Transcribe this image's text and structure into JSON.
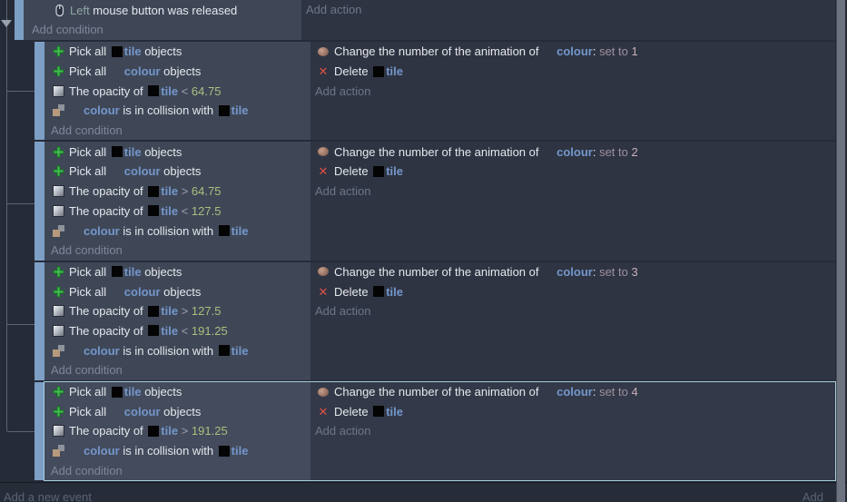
{
  "colors": {
    "page_bg": "#262b38",
    "condition_bg": "#3f4757",
    "action_bg": "#2e3442",
    "event_bar": "#7d9fc5",
    "selection_border": "#a9cfdc",
    "text": "#e6e8ec",
    "object_name": "#7497cb",
    "number": "#aabf7d",
    "operator": "#99a1ad",
    "param": "#8fa6a3",
    "set_to": "#a0909e",
    "value": "#c9b0ba",
    "add_link": "#7e8798",
    "add_link_dark": "#6e7787",
    "footer_text": "#5a6375",
    "scrollbar": "#6d747f",
    "tree_line": "#5c6473",
    "delete_red": "#dd5043",
    "plus_green": "#3fbf4f"
  },
  "labels": {
    "add_condition": "Add condition",
    "add_action": "Add action"
  },
  "objects": {
    "tile": "tile",
    "colour": "colour"
  },
  "top_event": {
    "condition": {
      "icon": "mouse-icon",
      "segments": [
        {
          "t": "Left",
          "c": "param"
        },
        {
          "t": " mouse button was released",
          "c": "text"
        }
      ]
    },
    "actions": []
  },
  "sub_events": [
    {
      "selected": false,
      "conditions": [
        {
          "icon": "pick-objects-icon",
          "segments": [
            {
              "t": "Pick all ",
              "c": "text"
            },
            {
              "thumb": "black",
              "obj": "tile"
            },
            {
              "t": "tile",
              "c": "object"
            },
            {
              "t": " objects",
              "c": "text"
            }
          ]
        },
        {
          "icon": "pick-objects-icon",
          "segments": [
            {
              "t": "Pick all ",
              "c": "text"
            },
            {
              "thumb": "clear",
              "obj": "colour"
            },
            {
              "t": "colour",
              "c": "object"
            },
            {
              "t": " objects",
              "c": "text"
            }
          ]
        },
        {
          "icon": "opacity-icon",
          "segments": [
            {
              "t": "The opacity of ",
              "c": "text"
            },
            {
              "thumb": "black",
              "obj": "tile"
            },
            {
              "t": "tile",
              "c": "object"
            },
            {
              "t": " < ",
              "c": "op"
            },
            {
              "t": "64.75",
              "c": "number"
            }
          ]
        },
        {
          "icon": "collision-icon",
          "segments": [
            {
              "thumb": "clear",
              "obj": "colour"
            },
            {
              "t": "colour",
              "c": "object"
            },
            {
              "t": " is in collision with ",
              "c": "text"
            },
            {
              "thumb": "black",
              "obj": "tile"
            },
            {
              "t": "tile",
              "c": "object"
            }
          ]
        }
      ],
      "actions": [
        {
          "icon": "animation-icon",
          "segments": [
            {
              "t": "Change the number of the animation of ",
              "c": "text"
            },
            {
              "thumb": "clear",
              "obj": "colour"
            },
            {
              "t": "colour",
              "c": "object"
            },
            {
              "t": ": ",
              "c": "text"
            },
            {
              "t": "set to ",
              "c": "setto"
            },
            {
              "t": "1",
              "c": "value"
            }
          ]
        },
        {
          "icon": "delete-icon",
          "segments": [
            {
              "t": "Delete ",
              "c": "text"
            },
            {
              "thumb": "black",
              "obj": "tile"
            },
            {
              "t": "tile",
              "c": "object"
            }
          ]
        }
      ]
    },
    {
      "selected": false,
      "conditions": [
        {
          "icon": "pick-objects-icon",
          "segments": [
            {
              "t": "Pick all ",
              "c": "text"
            },
            {
              "thumb": "black",
              "obj": "tile"
            },
            {
              "t": "tile",
              "c": "object"
            },
            {
              "t": " objects",
              "c": "text"
            }
          ]
        },
        {
          "icon": "pick-objects-icon",
          "segments": [
            {
              "t": "Pick all ",
              "c": "text"
            },
            {
              "thumb": "clear",
              "obj": "colour"
            },
            {
              "t": "colour",
              "c": "object"
            },
            {
              "t": " objects",
              "c": "text"
            }
          ]
        },
        {
          "icon": "opacity-icon",
          "segments": [
            {
              "t": "The opacity of ",
              "c": "text"
            },
            {
              "thumb": "black",
              "obj": "tile"
            },
            {
              "t": "tile",
              "c": "object"
            },
            {
              "t": " > ",
              "c": "op"
            },
            {
              "t": "64.75",
              "c": "number"
            }
          ]
        },
        {
          "icon": "opacity-icon",
          "segments": [
            {
              "t": "The opacity of ",
              "c": "text"
            },
            {
              "thumb": "black",
              "obj": "tile"
            },
            {
              "t": "tile",
              "c": "object"
            },
            {
              "t": " < ",
              "c": "op"
            },
            {
              "t": "127.5",
              "c": "number"
            }
          ]
        },
        {
          "icon": "collision-icon",
          "segments": [
            {
              "thumb": "clear",
              "obj": "colour"
            },
            {
              "t": "colour",
              "c": "object"
            },
            {
              "t": " is in collision with ",
              "c": "text"
            },
            {
              "thumb": "black",
              "obj": "tile"
            },
            {
              "t": "tile",
              "c": "object"
            }
          ]
        }
      ],
      "actions": [
        {
          "icon": "animation-icon",
          "segments": [
            {
              "t": "Change the number of the animation of ",
              "c": "text"
            },
            {
              "thumb": "clear",
              "obj": "colour"
            },
            {
              "t": "colour",
              "c": "object"
            },
            {
              "t": ": ",
              "c": "text"
            },
            {
              "t": "set to ",
              "c": "setto"
            },
            {
              "t": "2",
              "c": "value"
            }
          ]
        },
        {
          "icon": "delete-icon",
          "segments": [
            {
              "t": "Delete ",
              "c": "text"
            },
            {
              "thumb": "black",
              "obj": "tile"
            },
            {
              "t": "tile",
              "c": "object"
            }
          ]
        }
      ]
    },
    {
      "selected": false,
      "conditions": [
        {
          "icon": "pick-objects-icon",
          "segments": [
            {
              "t": "Pick all ",
              "c": "text"
            },
            {
              "thumb": "black",
              "obj": "tile"
            },
            {
              "t": "tile",
              "c": "object"
            },
            {
              "t": " objects",
              "c": "text"
            }
          ]
        },
        {
          "icon": "pick-objects-icon",
          "segments": [
            {
              "t": "Pick all ",
              "c": "text"
            },
            {
              "thumb": "clear",
              "obj": "colour"
            },
            {
              "t": "colour",
              "c": "object"
            },
            {
              "t": " objects",
              "c": "text"
            }
          ]
        },
        {
          "icon": "opacity-icon",
          "segments": [
            {
              "t": "The opacity of ",
              "c": "text"
            },
            {
              "thumb": "black",
              "obj": "tile"
            },
            {
              "t": "tile",
              "c": "object"
            },
            {
              "t": " > ",
              "c": "op"
            },
            {
              "t": "127.5",
              "c": "number"
            }
          ]
        },
        {
          "icon": "opacity-icon",
          "segments": [
            {
              "t": "The opacity of ",
              "c": "text"
            },
            {
              "thumb": "black",
              "obj": "tile"
            },
            {
              "t": "tile",
              "c": "object"
            },
            {
              "t": " < ",
              "c": "op"
            },
            {
              "t": "191.25",
              "c": "number"
            }
          ]
        },
        {
          "icon": "collision-icon",
          "segments": [
            {
              "thumb": "clear",
              "obj": "colour"
            },
            {
              "t": "colour",
              "c": "object"
            },
            {
              "t": " is in collision with ",
              "c": "text"
            },
            {
              "thumb": "black",
              "obj": "tile"
            },
            {
              "t": "tile",
              "c": "object"
            }
          ]
        }
      ],
      "actions": [
        {
          "icon": "animation-icon",
          "segments": [
            {
              "t": "Change the number of the animation of ",
              "c": "text"
            },
            {
              "thumb": "clear",
              "obj": "colour"
            },
            {
              "t": "colour",
              "c": "object"
            },
            {
              "t": ": ",
              "c": "text"
            },
            {
              "t": "set to ",
              "c": "setto"
            },
            {
              "t": "3",
              "c": "value"
            }
          ]
        },
        {
          "icon": "delete-icon",
          "segments": [
            {
              "t": "Delete ",
              "c": "text"
            },
            {
              "thumb": "black",
              "obj": "tile"
            },
            {
              "t": "tile",
              "c": "object"
            }
          ]
        }
      ]
    },
    {
      "selected": true,
      "conditions": [
        {
          "icon": "pick-objects-icon",
          "segments": [
            {
              "t": "Pick all ",
              "c": "text"
            },
            {
              "thumb": "black",
              "obj": "tile"
            },
            {
              "t": "tile",
              "c": "object"
            },
            {
              "t": " objects",
              "c": "text"
            }
          ]
        },
        {
          "icon": "pick-objects-icon",
          "segments": [
            {
              "t": "Pick all ",
              "c": "text"
            },
            {
              "thumb": "clear",
              "obj": "colour"
            },
            {
              "t": "colour",
              "c": "object"
            },
            {
              "t": " objects",
              "c": "text"
            }
          ]
        },
        {
          "icon": "opacity-icon",
          "segments": [
            {
              "t": "The opacity of ",
              "c": "text"
            },
            {
              "thumb": "black",
              "obj": "tile"
            },
            {
              "t": "tile",
              "c": "object"
            },
            {
              "t": " > ",
              "c": "op"
            },
            {
              "t": "191.25",
              "c": "number"
            }
          ]
        },
        {
          "icon": "collision-icon",
          "segments": [
            {
              "thumb": "clear",
              "obj": "colour"
            },
            {
              "t": "colour",
              "c": "object"
            },
            {
              "t": " is in collision with ",
              "c": "text"
            },
            {
              "thumb": "black",
              "obj": "tile"
            },
            {
              "t": "tile",
              "c": "object"
            }
          ]
        }
      ],
      "actions": [
        {
          "icon": "animation-icon",
          "segments": [
            {
              "t": "Change the number of the animation of ",
              "c": "text"
            },
            {
              "thumb": "clear",
              "obj": "colour"
            },
            {
              "t": "colour",
              "c": "object"
            },
            {
              "t": ": ",
              "c": "text"
            },
            {
              "t": "set to ",
              "c": "setto"
            },
            {
              "t": "4",
              "c": "value"
            }
          ]
        },
        {
          "icon": "delete-icon",
          "segments": [
            {
              "t": "Delete ",
              "c": "text"
            },
            {
              "thumb": "black",
              "obj": "tile"
            },
            {
              "t": "tile",
              "c": "object"
            }
          ]
        }
      ]
    }
  ],
  "footer": {
    "add_event_label": "Add a new event",
    "add_label": "Add"
  }
}
